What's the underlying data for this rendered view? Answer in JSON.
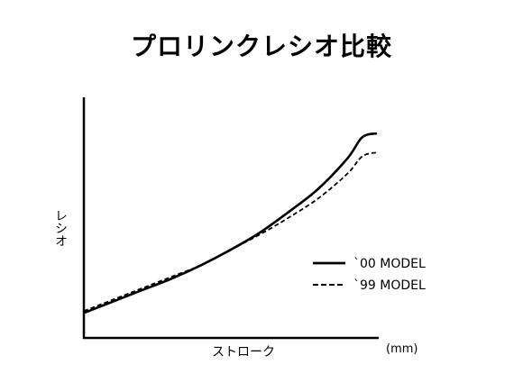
{
  "chart_data": {
    "type": "line",
    "title": "プロリンクレシオ比較",
    "xlabel": "ストローク",
    "xunit": "(mm)",
    "ylabel": "レシオ",
    "xlim": [
      0,
      1
    ],
    "ylim": [
      0,
      1
    ],
    "grid": false,
    "legend_position": "right-lower",
    "x": [
      0,
      0.1,
      0.2,
      0.3,
      0.4,
      0.5,
      0.6,
      0.7,
      0.8,
      0.9,
      0.95,
      1.0
    ],
    "series": [
      {
        "name": "`00 MODEL",
        "style": "solid",
        "color": "#000000",
        "values": [
          0.06,
          0.12,
          0.18,
          0.24,
          0.31,
          0.39,
          0.48,
          0.59,
          0.71,
          0.87,
          0.98,
          1.0
        ]
      },
      {
        "name": "`99 MODEL",
        "style": "dashed",
        "color": "#000000",
        "values": [
          0.07,
          0.13,
          0.19,
          0.25,
          0.31,
          0.39,
          0.47,
          0.56,
          0.66,
          0.79,
          0.88,
          0.9
        ]
      }
    ]
  }
}
